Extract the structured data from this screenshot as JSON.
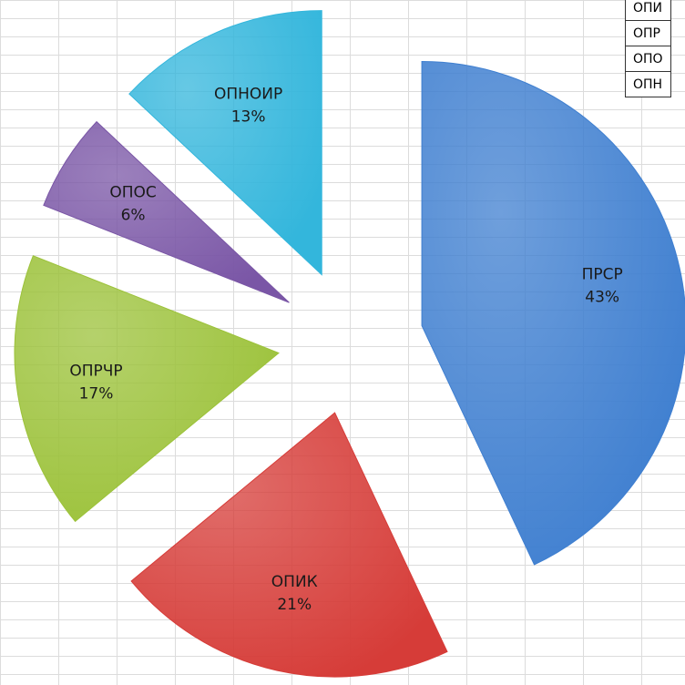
{
  "chart_data": {
    "type": "pie",
    "categories": [
      "ПРСР",
      "ОПИК",
      "ОПРЧР",
      "ОПОС",
      "ОПНОИР"
    ],
    "values": [
      43,
      21,
      17,
      6,
      13
    ],
    "value_labels": [
      "43%",
      "21%",
      "17%",
      "6%",
      "13%"
    ],
    "colors": [
      "#3f7fd0",
      "#d63c38",
      "#9cc23a",
      "#7a56a6",
      "#33b6dc"
    ]
  },
  "table_fragment": [
    "ОПИ",
    "ОПР",
    "ОПО",
    "ОПН"
  ]
}
